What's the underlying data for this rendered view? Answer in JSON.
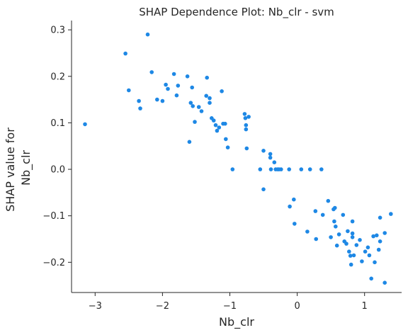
{
  "chart_data": {
    "type": "scatter",
    "title": "SHAP Dependence Plot: Nb_clr - svm",
    "xlabel": "Nb_clr",
    "ylabel_lines": [
      "SHAP value for",
      "Nb_clr"
    ],
    "xlim": [
      -3.35,
      1.55
    ],
    "ylim": [
      -0.265,
      0.32
    ],
    "x_ticks": [
      -3,
      -2,
      -1,
      0,
      1
    ],
    "x_tick_labels": [
      "−3",
      "−2",
      "−1",
      "0",
      "1"
    ],
    "y_ticks": [
      -0.2,
      -0.1,
      0.0,
      0.1,
      0.2,
      0.3
    ],
    "y_tick_labels": [
      "−0.2",
      "−0.1",
      "0.0",
      "0.1",
      "0.2",
      "0.3"
    ],
    "grid": false,
    "point_color": "#1e88e5",
    "points": [
      [
        -3.15,
        0.097
      ],
      [
        -2.55,
        0.249
      ],
      [
        -2.5,
        0.17
      ],
      [
        -2.35,
        0.147
      ],
      [
        -2.33,
        0.131
      ],
      [
        -2.22,
        0.29
      ],
      [
        -2.16,
        0.209
      ],
      [
        -2.08,
        0.15
      ],
      [
        -2.0,
        0.147
      ],
      [
        -1.95,
        0.182
      ],
      [
        -1.92,
        0.173
      ],
      [
        -1.83,
        0.205
      ],
      [
        -1.79,
        0.159
      ],
      [
        -1.77,
        0.18
      ],
      [
        -1.63,
        0.2
      ],
      [
        -1.6,
        0.059
      ],
      [
        -1.58,
        0.143
      ],
      [
        -1.56,
        0.176
      ],
      [
        -1.55,
        0.136
      ],
      [
        -1.52,
        0.102
      ],
      [
        -1.46,
        0.134
      ],
      [
        -1.42,
        0.125
      ],
      [
        -1.35,
        0.158
      ],
      [
        -1.34,
        0.197
      ],
      [
        -1.3,
        0.153
      ],
      [
        -1.3,
        0.143
      ],
      [
        -1.27,
        0.11
      ],
      [
        -1.24,
        0.105
      ],
      [
        -1.21,
        0.095
      ],
      [
        -1.19,
        0.083
      ],
      [
        -1.16,
        0.09
      ],
      [
        -1.12,
        0.168
      ],
      [
        -1.1,
        0.098
      ],
      [
        -1.07,
        0.098
      ],
      [
        -1.06,
        0.065
      ],
      [
        -1.03,
        0.047
      ],
      [
        -0.96,
        0.0
      ],
      [
        -0.78,
        0.119
      ],
      [
        -0.77,
        0.11
      ],
      [
        -0.76,
        0.095
      ],
      [
        -0.76,
        0.086
      ],
      [
        -0.75,
        0.045
      ],
      [
        -0.72,
        0.113
      ],
      [
        -0.55,
        0.0
      ],
      [
        -0.5,
        0.04
      ],
      [
        -0.5,
        -0.043
      ],
      [
        -0.4,
        0.033
      ],
      [
        -0.4,
        0.025
      ],
      [
        -0.39,
        0.0
      ],
      [
        -0.34,
        0.015
      ],
      [
        -0.32,
        0.0
      ],
      [
        -0.29,
        0.0
      ],
      [
        -0.27,
        0.0
      ],
      [
        -0.24,
        0.0
      ],
      [
        -0.12,
        0.0
      ],
      [
        -0.11,
        -0.08
      ],
      [
        -0.05,
        -0.065
      ],
      [
        -0.04,
        -0.117
      ],
      [
        0.06,
        0.0
      ],
      [
        0.15,
        -0.134
      ],
      [
        0.19,
        0.0
      ],
      [
        0.27,
        -0.09
      ],
      [
        0.28,
        -0.15
      ],
      [
        0.36,
        0.0
      ],
      [
        0.38,
        -0.098
      ],
      [
        0.46,
        -0.068
      ],
      [
        0.5,
        -0.146
      ],
      [
        0.54,
        -0.086
      ],
      [
        0.55,
        -0.112
      ],
      [
        0.56,
        -0.083
      ],
      [
        0.57,
        -0.123
      ],
      [
        0.59,
        -0.164
      ],
      [
        0.62,
        -0.14
      ],
      [
        0.68,
        -0.098
      ],
      [
        0.7,
        -0.155
      ],
      [
        0.73,
        -0.16
      ],
      [
        0.75,
        -0.133
      ],
      [
        0.77,
        -0.177
      ],
      [
        0.79,
        -0.186
      ],
      [
        0.8,
        -0.205
      ],
      [
        0.82,
        -0.112
      ],
      [
        0.82,
        -0.138
      ],
      [
        0.82,
        -0.146
      ],
      [
        0.84,
        -0.185
      ],
      [
        0.88,
        -0.163
      ],
      [
        0.93,
        -0.152
      ],
      [
        0.96,
        -0.198
      ],
      [
        1.01,
        -0.177
      ],
      [
        1.05,
        -0.168
      ],
      [
        1.07,
        -0.185
      ],
      [
        1.1,
        -0.235
      ],
      [
        1.13,
        -0.144
      ],
      [
        1.15,
        -0.2
      ],
      [
        1.18,
        -0.142
      ],
      [
        1.21,
        -0.173
      ],
      [
        1.23,
        -0.155
      ],
      [
        1.23,
        -0.104
      ],
      [
        1.3,
        -0.137
      ],
      [
        1.3,
        -0.244
      ],
      [
        1.39,
        -0.096
      ]
    ]
  }
}
